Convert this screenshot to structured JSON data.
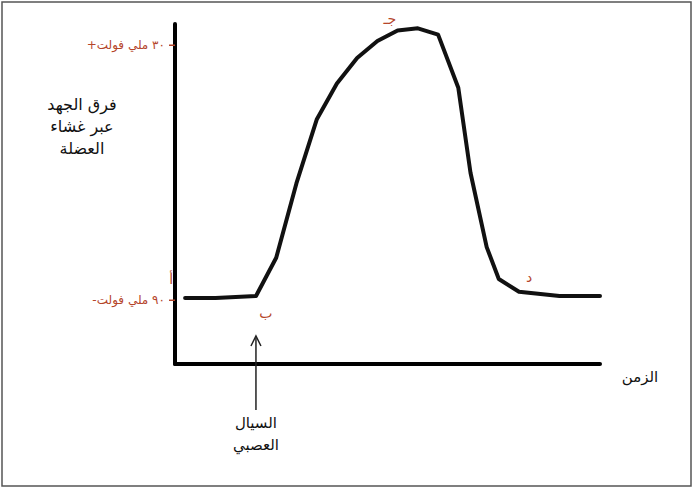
{
  "chart_data": {
    "type": "line",
    "y_label": "فرق الجهد عبر غشاء العضلة",
    "x_label": "الزمن",
    "x": [
      0.25,
      1,
      2,
      2.5,
      3,
      3.5,
      4,
      4.5,
      5,
      5.5,
      6,
      6.5,
      7,
      7.3,
      7.7,
      8,
      8.5,
      9.5,
      10.5
    ],
    "values": [
      -89,
      -89,
      -88,
      -70,
      -35,
      -5,
      12,
      24,
      32,
      37,
      38,
      35,
      10,
      -30,
      -65,
      -80,
      -86,
      -88,
      -88
    ],
    "color": "#111111",
    "xlim": [
      0,
      10.5
    ],
    "ylim": [
      -120,
      40
    ],
    "yticks": [
      {
        "value": -90,
        "label": "-٩٠ ملي فولت"
      },
      {
        "value": 30,
        "label": "+٣٠ ملي فولت"
      }
    ],
    "tick_labels": "y",
    "grid": false,
    "annotations": [
      {
        "text": "أ",
        "x": 0.25,
        "y": -89
      },
      {
        "text": "ب",
        "x": 2,
        "y": -88
      },
      {
        "text": "جـ",
        "x": 6,
        "y": 38
      },
      {
        "text": "د",
        "x": 8.5,
        "y": -86
      },
      {
        "text": "السيال العصبي",
        "x": 2
      }
    ]
  }
}
